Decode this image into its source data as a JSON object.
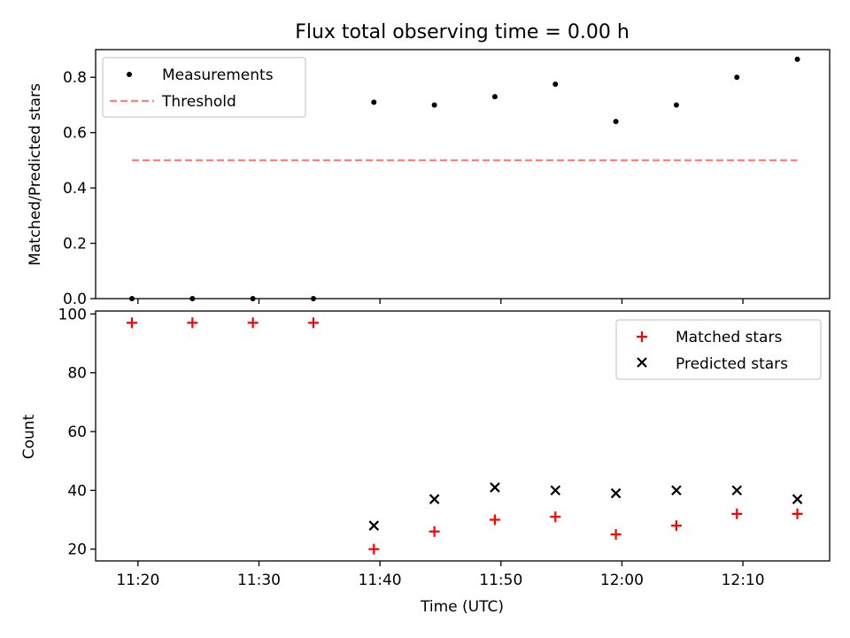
{
  "title": "Flux total observing time = 0.00 h",
  "colors": {
    "measurements": "#000000",
    "threshold": "#ff8080",
    "matched": "#ff0000",
    "predicted": "#000000"
  },
  "chart_data": [
    {
      "type": "scatter",
      "ylabel": "Matched/Predicted stars",
      "ylim": [
        0,
        0.9
      ],
      "yticks": [
        "0.0",
        "0.2",
        "0.4",
        "0.6",
        "0.8"
      ],
      "legend_position": "top-left",
      "x": [
        "11:19:30",
        "11:24:30",
        "11:29:30",
        "11:34:30",
        "11:39:30",
        "11:44:30",
        "11:49:30",
        "11:54:30",
        "11:59:30",
        "12:04:30",
        "12:09:30",
        "12:14:30"
      ],
      "series": [
        {
          "name": "Measurements",
          "values": [
            0,
            0,
            0,
            0,
            0.71,
            0.7,
            0.73,
            0.775,
            0.64,
            0.7,
            0.8,
            0.865
          ]
        },
        {
          "name": "Threshold",
          "style": "dashed-line",
          "values": [
            0.5,
            0.5,
            0.5,
            0.5,
            0.5,
            0.5,
            0.5,
            0.5,
            0.5,
            0.5,
            0.5,
            0.5
          ]
        }
      ]
    },
    {
      "type": "scatter",
      "xlabel": "Time (UTC)",
      "ylabel": "Count",
      "ylim": [
        16,
        101
      ],
      "yticks": [
        "20",
        "40",
        "60",
        "80",
        "100"
      ],
      "xticks": [
        "11:20",
        "11:30",
        "11:40",
        "11:50",
        "12:00",
        "12:10"
      ],
      "xlim": [
        "11:16:30",
        "12:17:10"
      ],
      "legend_position": "top-right",
      "x": [
        "11:19:30",
        "11:24:30",
        "11:29:30",
        "11:34:30",
        "11:39:30",
        "11:44:30",
        "11:49:30",
        "11:54:30",
        "11:59:30",
        "12:04:30",
        "12:09:30",
        "12:14:30"
      ],
      "series": [
        {
          "name": "Matched stars",
          "marker": "plus",
          "values": [
            97,
            97,
            97,
            97,
            20,
            26,
            30,
            31,
            25,
            28,
            32,
            32
          ]
        },
        {
          "name": "Predicted stars",
          "marker": "x",
          "values": [
            null,
            null,
            null,
            null,
            28,
            37,
            41,
            40,
            39,
            40,
            40,
            37
          ]
        }
      ]
    }
  ]
}
